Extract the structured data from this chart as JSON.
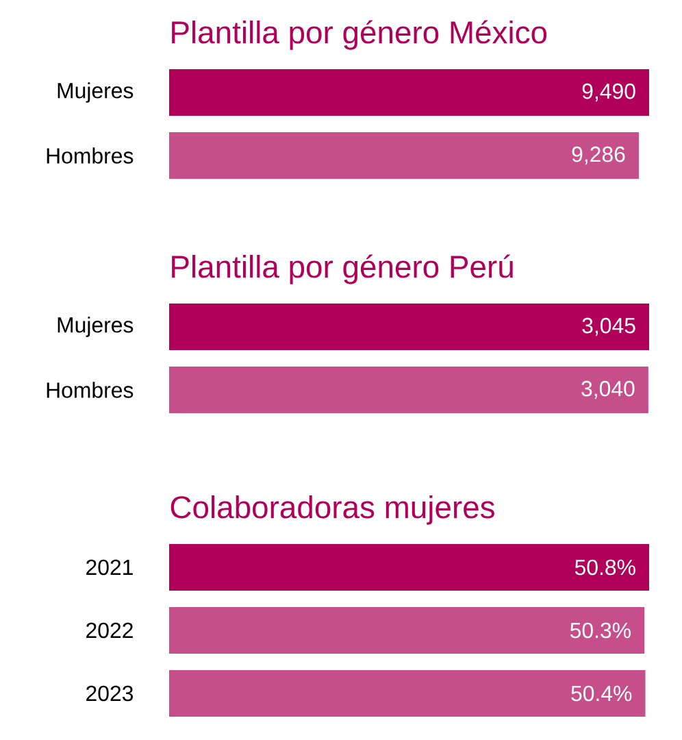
{
  "chart_data": [
    {
      "type": "bar",
      "orientation": "horizontal",
      "title": "Plantilla por género México",
      "categories": [
        "Mujeres",
        "Hombres"
      ],
      "values": [
        9490,
        9286
      ],
      "colors": [
        "#b0005a",
        "#c64f8b"
      ],
      "value_labels": [
        "9,490",
        "9,286"
      ]
    },
    {
      "type": "bar",
      "orientation": "horizontal",
      "title": "Plantilla por género Perú",
      "categories": [
        "Mujeres",
        "Hombres"
      ],
      "values": [
        3045,
        3040
      ],
      "colors": [
        "#b0005a",
        "#c64f8b"
      ],
      "value_labels": [
        "3,045",
        "3,040"
      ]
    },
    {
      "type": "bar",
      "orientation": "horizontal",
      "title": "Colaboradoras mujeres",
      "categories": [
        "2021",
        "2022",
        "2023"
      ],
      "values": [
        50.8,
        50.3,
        50.4
      ],
      "colors": [
        "#b0005a",
        "#c64f8b",
        "#c64f8b"
      ],
      "value_labels": [
        "50.8%",
        "50.3%",
        "50.4%"
      ]
    }
  ]
}
